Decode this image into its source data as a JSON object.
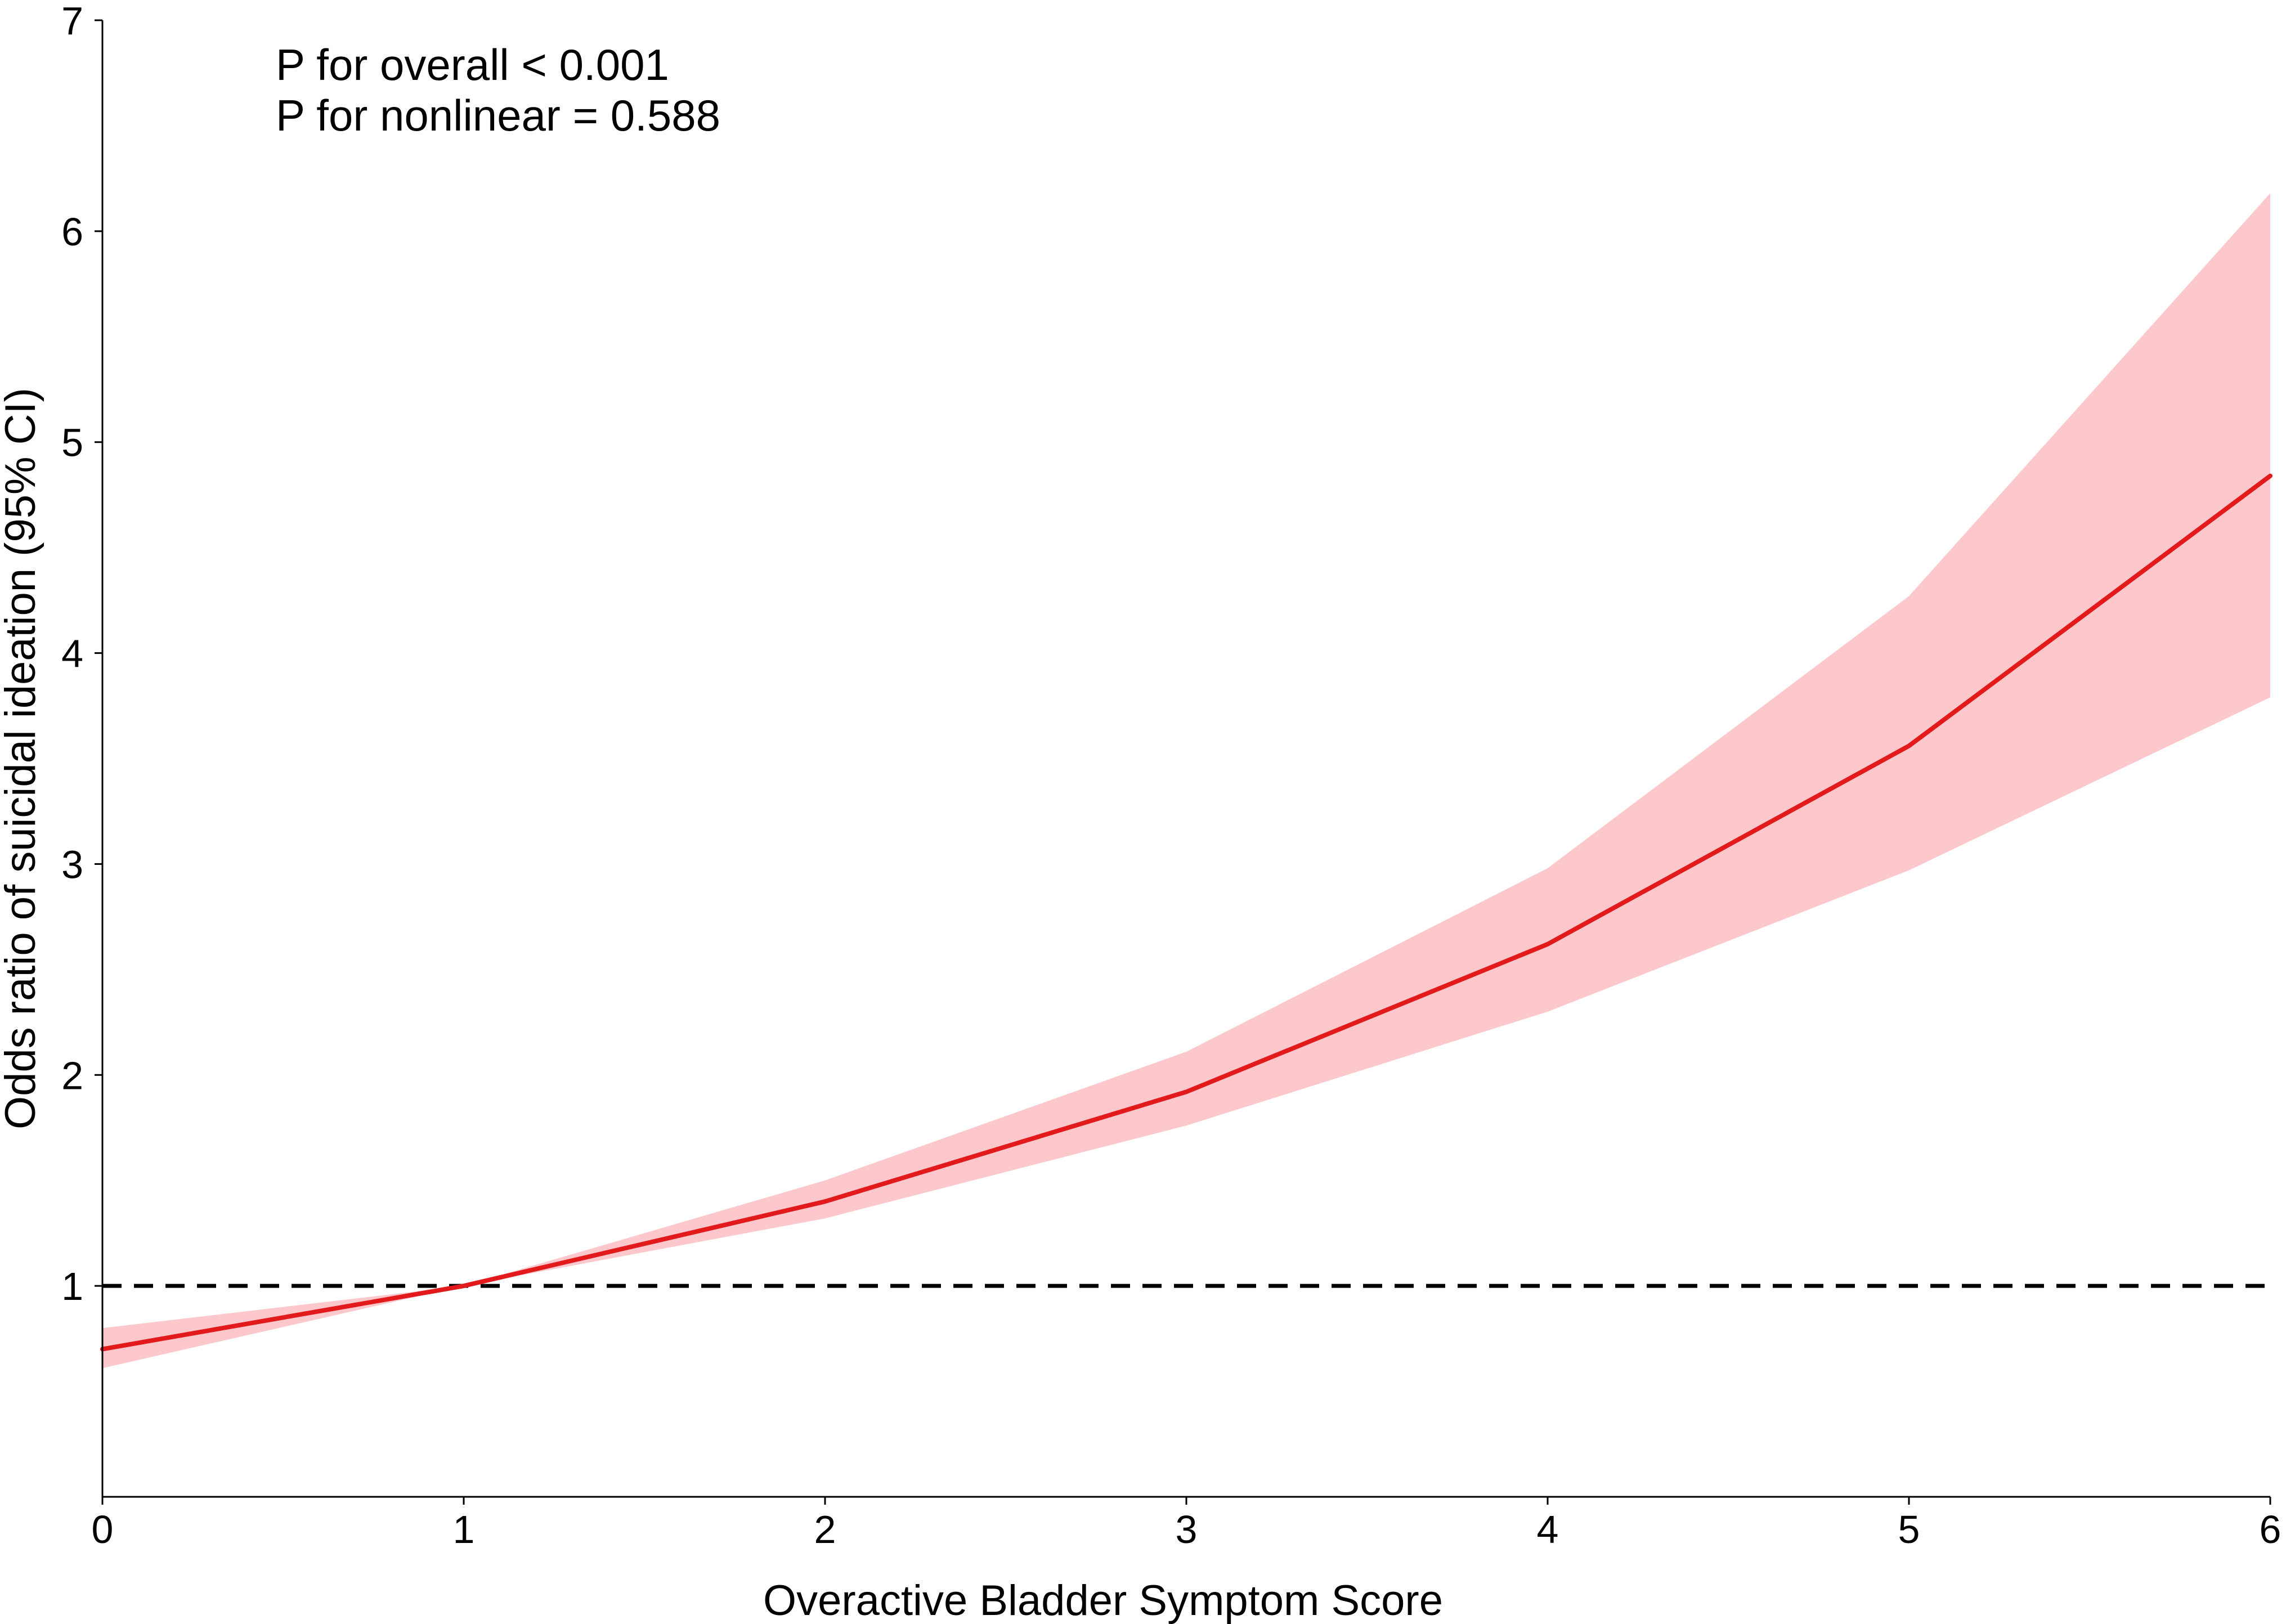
{
  "chart_data": {
    "type": "line",
    "title": "",
    "xlabel": "Overactive Bladder Symptom Score",
    "ylabel": "Odds ratio of suicidal ideation (95% CI)",
    "xlim": [
      0,
      6
    ],
    "ylim": [
      0,
      7
    ],
    "x_ticks": [
      0,
      1,
      2,
      3,
      4,
      5,
      6
    ],
    "y_ticks": [
      1,
      2,
      3,
      4,
      5,
      6,
      7
    ],
    "grid": false,
    "legend": "none",
    "annotations": [
      "P for overall < 0.001",
      "P for nonlinear = 0.588"
    ],
    "reference_line": {
      "y": 1,
      "style": "dashed",
      "color": "#000000"
    },
    "series": [
      {
        "x": [
          0,
          1,
          2,
          3,
          4,
          5,
          6
        ],
        "values": [
          0.7,
          1.0,
          1.4,
          1.92,
          2.62,
          3.56,
          4.84
        ],
        "lower": [
          0.61,
          1.0,
          1.32,
          1.76,
          2.3,
          2.97,
          3.79
        ],
        "upper": [
          0.8,
          1.0,
          1.5,
          2.11,
          2.98,
          4.27,
          6.18
        ],
        "color": "#e31a1c",
        "band_color": "#fcc8cc"
      }
    ]
  }
}
